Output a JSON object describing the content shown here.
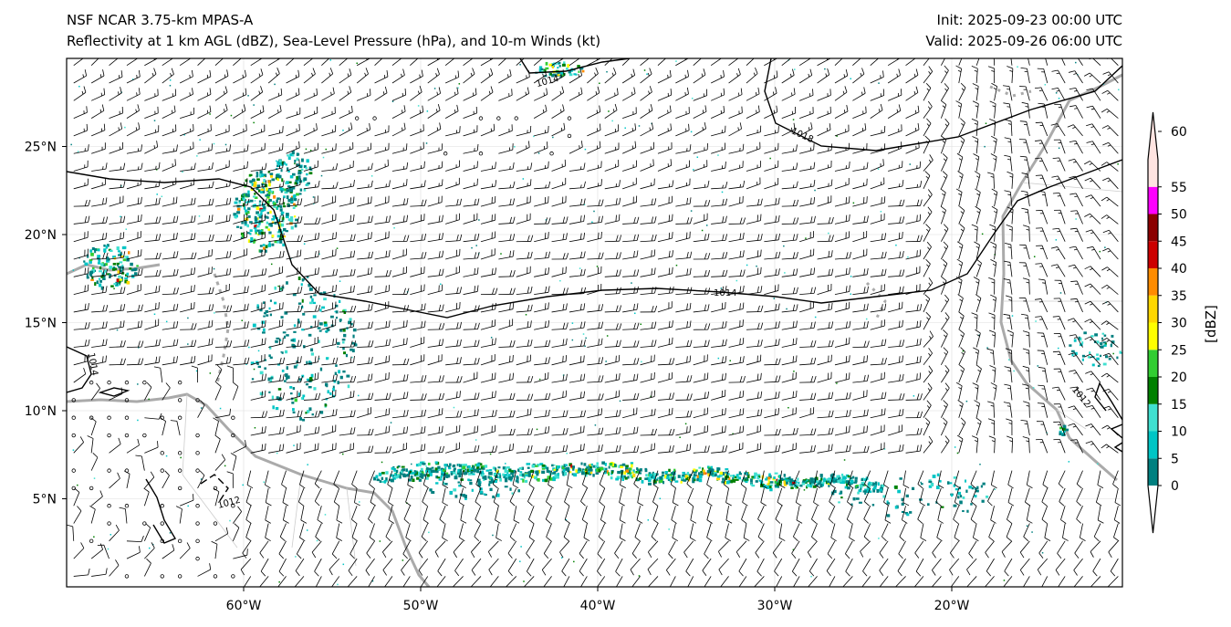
{
  "header": {
    "model": "NSF NCAR 3.75-km MPAS-A",
    "fields": "Reflectivity at 1 km AGL (dBZ), Sea-Level Pressure (hPa), and 10-m Winds (kt)",
    "init": "Init: 2025-09-23 00:00 UTC",
    "valid": "Valid: 2025-09-26 06:00 UTC"
  },
  "axes": {
    "lon_labels": [
      "60°W",
      "50°W",
      "40°W",
      "30°W",
      "20°W"
    ],
    "lon_values": [
      -60,
      -50,
      -40,
      -30,
      -20
    ],
    "lat_labels": [
      "25°N",
      "20°N",
      "15°N",
      "10°N",
      "5°N"
    ],
    "lat_values": [
      25,
      20,
      15,
      10,
      5
    ],
    "extent": {
      "lon": [
        -70,
        -10.3
      ],
      "lat": [
        0,
        30
      ]
    }
  },
  "contours": {
    "labels": [
      "1014",
      "1018",
      "1014",
      "1014",
      "1012",
      "1012"
    ]
  },
  "colorbar": {
    "label": "[dBZ]",
    "ticks": [
      "0",
      "5",
      "10",
      "15",
      "20",
      "25",
      "30",
      "35",
      "40",
      "45",
      "50",
      "55",
      "60"
    ],
    "colors": [
      "#008080",
      "#00c5c5",
      "#40e0d0",
      "#008000",
      "#32cd32",
      "#ffff00",
      "#ffd700",
      "#ff8c00",
      "#cc0000",
      "#8b0000",
      "#ff00ff",
      "#ffe4e1"
    ]
  }
}
